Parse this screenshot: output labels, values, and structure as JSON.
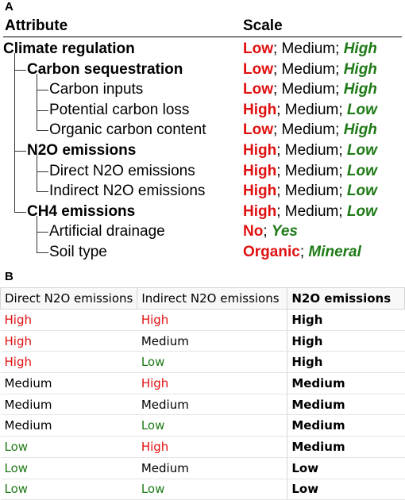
{
  "panel_a": {
    "letter": "A",
    "col_attribute": "Attribute",
    "col_scale": "Scale",
    "rows": [
      {
        "label": "Climate regulation",
        "bold": true,
        "scale": [
          {
            "t": "Low",
            "c": "red"
          },
          {
            "t": "; Medium; ",
            "c": "blk"
          },
          {
            "t": "High",
            "c": "grn"
          }
        ]
      },
      {
        "label": "Carbon sequestration",
        "bold": true,
        "scale": [
          {
            "t": "Low",
            "c": "red"
          },
          {
            "t": "; Medium; ",
            "c": "blk"
          },
          {
            "t": "High",
            "c": "grn"
          }
        ]
      },
      {
        "label": "Carbon inputs",
        "bold": false,
        "scale": [
          {
            "t": "Low",
            "c": "red"
          },
          {
            "t": "; Medium; ",
            "c": "blk"
          },
          {
            "t": "High",
            "c": "grn"
          }
        ]
      },
      {
        "label": "Potential carbon loss",
        "bold": false,
        "scale": [
          {
            "t": "High",
            "c": "red"
          },
          {
            "t": "; Medium; ",
            "c": "blk"
          },
          {
            "t": "Low",
            "c": "grn"
          }
        ]
      },
      {
        "label": "Organic carbon content",
        "bold": false,
        "scale": [
          {
            "t": "Low",
            "c": "red"
          },
          {
            "t": "; Medium; ",
            "c": "blk"
          },
          {
            "t": "High",
            "c": "grn"
          }
        ]
      },
      {
        "label": "N2O emissions",
        "bold": true,
        "scale": [
          {
            "t": "High",
            "c": "red"
          },
          {
            "t": "; Medium; ",
            "c": "blk"
          },
          {
            "t": "Low",
            "c": "grn"
          }
        ]
      },
      {
        "label": "Direct N2O emissions",
        "bold": false,
        "scale": [
          {
            "t": "High",
            "c": "red"
          },
          {
            "t": "; Medium; ",
            "c": "blk"
          },
          {
            "t": "Low",
            "c": "grn"
          }
        ]
      },
      {
        "label": "Indirect N2O emissions",
        "bold": false,
        "scale": [
          {
            "t": "High",
            "c": "red"
          },
          {
            "t": "; Medium; ",
            "c": "blk"
          },
          {
            "t": "Low",
            "c": "grn"
          }
        ]
      },
      {
        "label": "CH4 emissions",
        "bold": true,
        "scale": [
          {
            "t": "High",
            "c": "red"
          },
          {
            "t": "; Medium; ",
            "c": "blk"
          },
          {
            "t": "Low",
            "c": "grn"
          }
        ]
      },
      {
        "label": "Artificial drainage",
        "bold": false,
        "scale": [
          {
            "t": "No",
            "c": "red"
          },
          {
            "t": "; ",
            "c": "blk"
          },
          {
            "t": "Yes",
            "c": "grn"
          }
        ]
      },
      {
        "label": "Soil type",
        "bold": false,
        "scale": [
          {
            "t": "Organic",
            "c": "red"
          },
          {
            "t": "; ",
            "c": "blk"
          },
          {
            "t": "Mineral",
            "c": "grn"
          }
        ]
      }
    ]
  },
  "panel_b": {
    "letter": "B",
    "headers": [
      "Direct N2O emissions",
      "Indirect N2O emissions",
      "N2O emissions"
    ],
    "rows": [
      [
        "High",
        "High",
        "High"
      ],
      [
        "High",
        "Medium",
        "High"
      ],
      [
        "High",
        "Low",
        "High"
      ],
      [
        "Medium",
        "High",
        "Medium"
      ],
      [
        "Medium",
        "Medium",
        "Medium"
      ],
      [
        "Medium",
        "Low",
        "Medium"
      ],
      [
        "Low",
        "High",
        "Medium"
      ],
      [
        "Low",
        "Medium",
        "Low"
      ],
      [
        "Low",
        "Low",
        "Low"
      ]
    ]
  },
  "colors": {
    "high_red": "#e01010",
    "low_green": "#1e7a16"
  }
}
